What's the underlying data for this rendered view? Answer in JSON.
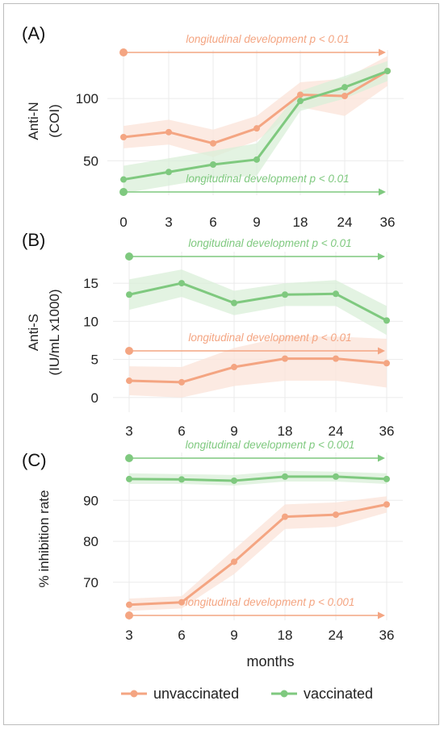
{
  "colors": {
    "unvaccinated": "#f4a582",
    "vaccinated": "#7fc97f",
    "unvaccinated_band": "#fbe3d8",
    "vaccinated_band": "#d9efd8"
  },
  "legend": {
    "unvaccinated": "unvaccinated",
    "vaccinated": "vaccinated"
  },
  "xlabel": "months",
  "chart_data": [
    {
      "type": "line",
      "panel_label": "(A)",
      "ylabel": [
        "Anti-N",
        "(COI)"
      ],
      "categories": [
        "0",
        "3",
        "6",
        "9",
        "18",
        "24",
        "36"
      ],
      "yticks": [
        50,
        100
      ],
      "ylim": [
        25,
        135
      ],
      "series": [
        {
          "name": "unvaccinated",
          "values": [
            69,
            73,
            64,
            76,
            103,
            102,
            122
          ],
          "lower": [
            60,
            63,
            53,
            66,
            93,
            86,
            110
          ],
          "upper": [
            78,
            83,
            75,
            86,
            113,
            116,
            134
          ]
        },
        {
          "name": "vaccinated",
          "values": [
            35,
            41,
            47,
            51,
            98,
            109,
            122
          ],
          "lower": [
            24,
            30,
            36,
            38,
            90,
            100,
            114
          ],
          "upper": [
            46,
            52,
            58,
            64,
            106,
            118,
            130
          ]
        }
      ],
      "annotations": [
        {
          "series": "unvaccinated",
          "text": "longitudinal development p < 0.01",
          "position": "top"
        },
        {
          "series": "vaccinated",
          "text": "longitudinal development p < 0.01",
          "position": "bottom"
        }
      ]
    },
    {
      "type": "line",
      "panel_label": "(B)",
      "ylabel": [
        "Anti-S",
        "(IU/mL x1000)"
      ],
      "categories": [
        "3",
        "6",
        "9",
        "18",
        "24",
        "36"
      ],
      "yticks": [
        0,
        5,
        10,
        15
      ],
      "ylim": [
        -1.5,
        18.5
      ],
      "series": [
        {
          "name": "vaccinated",
          "values": [
            13.5,
            15,
            12.4,
            13.5,
            13.6,
            10.1
          ],
          "lower": [
            11.5,
            13.2,
            10.8,
            12.0,
            12.0,
            8.2
          ],
          "upper": [
            15.5,
            16.8,
            14.0,
            15.0,
            15.4,
            12.0
          ]
        },
        {
          "name": "unvaccinated",
          "values": [
            2.2,
            2.0,
            4.0,
            5.1,
            5.1,
            4.5
          ],
          "lower": [
            0.3,
            0.0,
            1.5,
            2.2,
            2.2,
            1.3
          ],
          "upper": [
            4.1,
            4.0,
            6.5,
            8.0,
            8.0,
            7.7
          ]
        }
      ],
      "annotations": [
        {
          "series": "vaccinated",
          "text": "longitudinal development p < 0.01",
          "position": "top"
        },
        {
          "series": "unvaccinated",
          "text": "longitudinal development p < 0.01",
          "position": "middle"
        }
      ]
    },
    {
      "type": "line",
      "panel_label": "(C)",
      "ylabel": [
        "% inhibition rate"
      ],
      "categories": [
        "3",
        "6",
        "9",
        "18",
        "24",
        "36"
      ],
      "yticks": [
        70,
        80,
        90
      ],
      "ylim": [
        61.5,
        100.5
      ],
      "series": [
        {
          "name": "vaccinated",
          "values": [
            95.2,
            95.1,
            94.8,
            95.8,
            95.8,
            95.2
          ],
          "lower": [
            94.0,
            94.0,
            93.6,
            94.6,
            94.6,
            94.0
          ],
          "upper": [
            96.6,
            96.4,
            96.2,
            97.2,
            97.0,
            96.6
          ]
        },
        {
          "name": "unvaccinated",
          "values": [
            64.5,
            65.1,
            75,
            86,
            86.5,
            89
          ],
          "lower": [
            63.0,
            63.6,
            72.0,
            83.0,
            83.5,
            87.0
          ],
          "upper": [
            66.0,
            66.6,
            78.0,
            89.0,
            89.5,
            91.0
          ]
        }
      ],
      "annotations": [
        {
          "series": "vaccinated",
          "text": "longitudinal development p < 0.001",
          "position": "top"
        },
        {
          "series": "unvaccinated",
          "text": "longitudinal development p < 0.001",
          "position": "bottom"
        }
      ]
    }
  ]
}
